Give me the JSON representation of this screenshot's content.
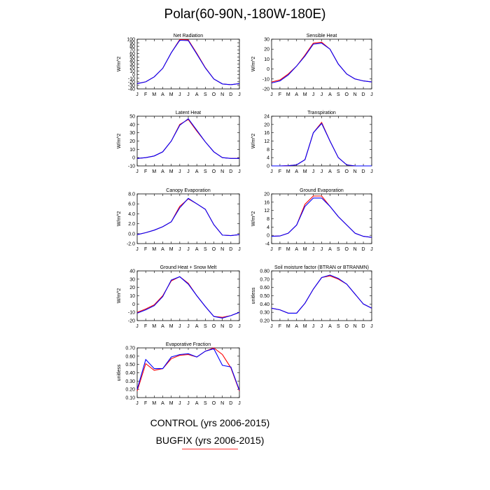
{
  "title": "Polar(60-90N,-180W-180E)",
  "months": [
    "J",
    "F",
    "M",
    "A",
    "M",
    "J",
    "J",
    "A",
    "S",
    "O",
    "N",
    "D",
    "J"
  ],
  "legend": {
    "control": "CONTROL (yrs 2006-2015)",
    "bugfix": "BUGFIX (yrs 2006-2015)"
  },
  "colors": {
    "control": "#ff0000",
    "bugfix": "#0000ff"
  },
  "chart_data": [
    {
      "type": "line",
      "title": "Net Radiation",
      "ylabel": "W/m^2",
      "ylim": [
        -40,
        100
      ],
      "yticks": [
        -40,
        -30,
        -20,
        -10,
        0,
        10,
        20,
        30,
        40,
        50,
        60,
        70,
        80,
        90,
        100
      ],
      "ytick_labels": [
        "-40",
        "-30",
        "-20",
        "-10",
        "0",
        "10",
        "20",
        "30",
        "40",
        "50",
        "60",
        "70",
        "80",
        "90",
        "100"
      ],
      "x": [
        "J",
        "F",
        "M",
        "A",
        "M",
        "J",
        "J",
        "A",
        "S",
        "O",
        "N",
        "D",
        "J"
      ],
      "series": [
        {
          "name": "CONTROL",
          "values": [
            -25,
            -20,
            -6,
            18,
            62,
            99,
            98,
            60,
            20,
            -12,
            -26,
            -28,
            -25
          ]
        },
        {
          "name": "BUGFIX",
          "values": [
            -25,
            -20,
            -6,
            18,
            62,
            97,
            96,
            58,
            19,
            -12,
            -26,
            -28,
            -25
          ]
        }
      ]
    },
    {
      "type": "line",
      "title": "Sensible Heat",
      "ylabel": "W/m^2",
      "ylim": [
        -20,
        30
      ],
      "yticks": [
        -20,
        -10,
        0,
        10,
        20,
        30
      ],
      "ytick_labels": [
        "-20",
        "-10",
        "0",
        "10",
        "20",
        "30"
      ],
      "x": [
        "J",
        "F",
        "M",
        "A",
        "M",
        "J",
        "J",
        "A",
        "S",
        "O",
        "N",
        "D",
        "J"
      ],
      "series": [
        {
          "name": "CONTROL",
          "values": [
            -13,
            -11,
            -5,
            3,
            14,
            26,
            27,
            20,
            5,
            -5,
            -10,
            -12,
            -13
          ]
        },
        {
          "name": "BUGFIX",
          "values": [
            -14,
            -12,
            -6,
            3,
            13,
            25,
            26,
            20,
            5,
            -5,
            -10,
            -12,
            -13
          ]
        }
      ]
    },
    {
      "type": "line",
      "title": "Latent Heat",
      "ylabel": "W/m^2",
      "ylim": [
        -10,
        50
      ],
      "yticks": [
        -10,
        0,
        10,
        20,
        30,
        40,
        50
      ],
      "ytick_labels": [
        "-10",
        "0",
        "10",
        "20",
        "30",
        "40",
        "50"
      ],
      "x": [
        "J",
        "F",
        "M",
        "A",
        "M",
        "J",
        "J",
        "A",
        "S",
        "O",
        "N",
        "D",
        "J"
      ],
      "series": [
        {
          "name": "CONTROL",
          "values": [
            -1,
            0,
            2,
            7,
            20,
            40,
            46,
            32,
            19,
            7,
            0,
            -1,
            -1
          ]
        },
        {
          "name": "BUGFIX",
          "values": [
            -1,
            0,
            2,
            7,
            20,
            39,
            47,
            33,
            19,
            7,
            0,
            -1,
            -1
          ]
        }
      ]
    },
    {
      "type": "line",
      "title": "Transpiration",
      "ylabel": "W/m^2",
      "ylim": [
        0,
        24
      ],
      "yticks": [
        0,
        4,
        8,
        12,
        16,
        20,
        24
      ],
      "ytick_labels": [
        "0",
        "4",
        "8",
        "12",
        "16",
        "20",
        "24"
      ],
      "x": [
        "J",
        "F",
        "M",
        "A",
        "M",
        "J",
        "J",
        "A",
        "S",
        "O",
        "N",
        "D",
        "J"
      ],
      "series": [
        {
          "name": "CONTROL",
          "values": [
            0,
            0,
            0.1,
            0.5,
            3,
            16,
            21,
            12,
            4,
            0.5,
            0,
            0,
            0
          ]
        },
        {
          "name": "BUGFIX",
          "values": [
            0,
            0,
            0.1,
            0.5,
            3,
            16,
            20.5,
            12,
            4,
            0.5,
            0,
            0,
            0
          ]
        }
      ]
    },
    {
      "type": "line",
      "title": "Canopy Evaporation",
      "ylabel": "W/m^2",
      "ylim": [
        -2,
        8
      ],
      "yticks": [
        -2,
        0,
        2,
        4,
        6,
        8
      ],
      "ytick_labels": [
        "-2.0",
        "0.0",
        "2.0",
        "4.0",
        "6.0",
        "8.0"
      ],
      "x": [
        "J",
        "F",
        "M",
        "A",
        "M",
        "J",
        "J",
        "A",
        "S",
        "O",
        "N",
        "D",
        "J"
      ],
      "series": [
        {
          "name": "CONTROL",
          "values": [
            -0.2,
            0.2,
            0.7,
            1.4,
            2.4,
            5.5,
            7.0,
            6.0,
            4.9,
            1.8,
            -0.3,
            -0.4,
            -0.2
          ]
        },
        {
          "name": "BUGFIX",
          "values": [
            -0.2,
            0.2,
            0.7,
            1.4,
            2.4,
            5.2,
            7.1,
            6.0,
            4.9,
            1.8,
            -0.3,
            -0.4,
            -0.2
          ]
        }
      ]
    },
    {
      "type": "line",
      "title": "Ground Evaporation",
      "ylabel": "W/m^2",
      "ylim": [
        -4,
        20
      ],
      "yticks": [
        -4,
        0,
        4,
        8,
        12,
        16,
        20
      ],
      "ytick_labels": [
        "-4",
        "0",
        "4",
        "8",
        "12",
        "16",
        "20"
      ],
      "x": [
        "J",
        "F",
        "M",
        "A",
        "M",
        "J",
        "J",
        "A",
        "S",
        "O",
        "N",
        "D",
        "J"
      ],
      "series": [
        {
          "name": "CONTROL",
          "values": [
            -0.5,
            -0.3,
            1,
            5,
            15,
            19,
            19,
            14,
            9,
            5,
            1,
            -0.5,
            -1
          ]
        },
        {
          "name": "BUGFIX",
          "values": [
            -0.5,
            -0.3,
            1,
            5,
            14,
            18,
            18,
            14,
            9,
            5,
            1,
            -0.5,
            -1
          ]
        }
      ]
    },
    {
      "type": "line",
      "title": "Ground Heat + Snow Melt",
      "ylabel": "W/m^2",
      "ylim": [
        -20,
        40
      ],
      "yticks": [
        -20,
        -10,
        0,
        10,
        20,
        30,
        40
      ],
      "ytick_labels": [
        "-20",
        "-10",
        "0",
        "10",
        "20",
        "30",
        "40"
      ],
      "x": [
        "J",
        "F",
        "M",
        "A",
        "M",
        "J",
        "J",
        "A",
        "S",
        "O",
        "N",
        "D",
        "J"
      ],
      "series": [
        {
          "name": "CONTROL",
          "values": [
            -10,
            -6,
            -1,
            10,
            28,
            33,
            25,
            10,
            -3,
            -15,
            -16,
            -14,
            -10
          ]
        },
        {
          "name": "BUGFIX",
          "values": [
            -11,
            -7,
            -2,
            9,
            29,
            33,
            24,
            10,
            -3,
            -15,
            -17,
            -14,
            -10
          ]
        }
      ]
    },
    {
      "type": "line",
      "title": "Soil moisture factor (BTRAN or BTRANMN)",
      "ylabel": "unitless",
      "ylim": [
        0.2,
        0.8
      ],
      "yticks": [
        0.2,
        0.3,
        0.4,
        0.5,
        0.6,
        0.7,
        0.8
      ],
      "ytick_labels": [
        "0.20",
        "0.30",
        "0.40",
        "0.50",
        "0.60",
        "0.70",
        "0.80"
      ],
      "x": [
        "J",
        "F",
        "M",
        "A",
        "M",
        "J",
        "J",
        "A",
        "S",
        "O",
        "N",
        "D",
        "J"
      ],
      "series": [
        {
          "name": "CONTROL",
          "values": [
            0.35,
            0.33,
            0.29,
            0.29,
            0.41,
            0.58,
            0.72,
            0.74,
            0.7,
            0.64,
            0.52,
            0.4,
            0.35
          ]
        },
        {
          "name": "BUGFIX",
          "values": [
            0.35,
            0.33,
            0.29,
            0.29,
            0.41,
            0.58,
            0.72,
            0.75,
            0.71,
            0.64,
            0.52,
            0.4,
            0.35
          ]
        }
      ]
    },
    {
      "type": "line",
      "title": "Evaporative Fraction",
      "ylabel": "unitless",
      "ylim": [
        0.1,
        0.7
      ],
      "yticks": [
        0.1,
        0.2,
        0.3,
        0.4,
        0.5,
        0.6,
        0.7
      ],
      "ytick_labels": [
        "0.10",
        "0.20",
        "0.30",
        "0.40",
        "0.50",
        "0.60",
        "0.70"
      ],
      "x": [
        "J",
        "F",
        "M",
        "A",
        "M",
        "J",
        "J",
        "A",
        "S",
        "O",
        "N",
        "D",
        "J"
      ],
      "series": [
        {
          "name": "CONTROL",
          "values": [
            0.18,
            0.51,
            0.43,
            0.45,
            0.57,
            0.61,
            0.62,
            0.59,
            0.66,
            0.7,
            0.62,
            0.46,
            0.18
          ]
        },
        {
          "name": "BUGFIX",
          "values": [
            0.2,
            0.56,
            0.45,
            0.45,
            0.59,
            0.62,
            0.63,
            0.59,
            0.66,
            0.69,
            0.49,
            0.47,
            0.19
          ]
        }
      ]
    }
  ]
}
